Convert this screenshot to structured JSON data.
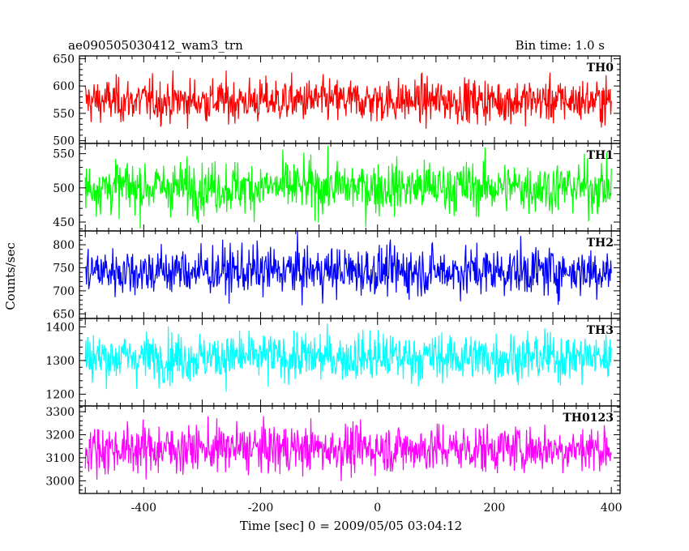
{
  "header": {
    "title": "ae090505030412_wam3_trn",
    "bin_time": "Bin time: 1.0 s"
  },
  "chart_data": {
    "type": "line",
    "xlabel": "Time [sec] 0 = 2009/05/05 03:04:12",
    "ylabel": "Counts/sec",
    "xlim": [
      -510,
      415
    ],
    "x_ticks": [
      -400,
      -200,
      0,
      200,
      400
    ],
    "x_range": [
      -500,
      400
    ],
    "bin_seconds": 1.0,
    "grid": false,
    "panels": [
      {
        "name": "TH0",
        "color": "#ff0000",
        "ylim": [
          495,
          655
        ],
        "y_ticks": [
          500,
          550,
          600,
          650
        ],
        "mean": 573,
        "spread": 21
      },
      {
        "name": "TH1",
        "color": "#00ff00",
        "ylim": [
          437,
          565
        ],
        "y_ticks": [
          450,
          500,
          550
        ],
        "mean": 501,
        "spread": 20
      },
      {
        "name": "TH2",
        "color": "#0000ff",
        "ylim": [
          640,
          830
        ],
        "y_ticks": [
          650,
          700,
          750,
          800
        ],
        "mean": 743,
        "spread": 28
      },
      {
        "name": "TH3",
        "color": "#00ffff",
        "ylim": [
          1165,
          1425
        ],
        "y_ticks": [
          1200,
          1300,
          1400
        ],
        "mean": 1310,
        "spread": 38
      },
      {
        "name": "TH0123",
        "color": "#ff00ff",
        "ylim": [
          2945,
          3325
        ],
        "y_ticks": [
          3000,
          3100,
          3200,
          3300
        ],
        "mean": 3140,
        "spread": 55
      }
    ]
  }
}
